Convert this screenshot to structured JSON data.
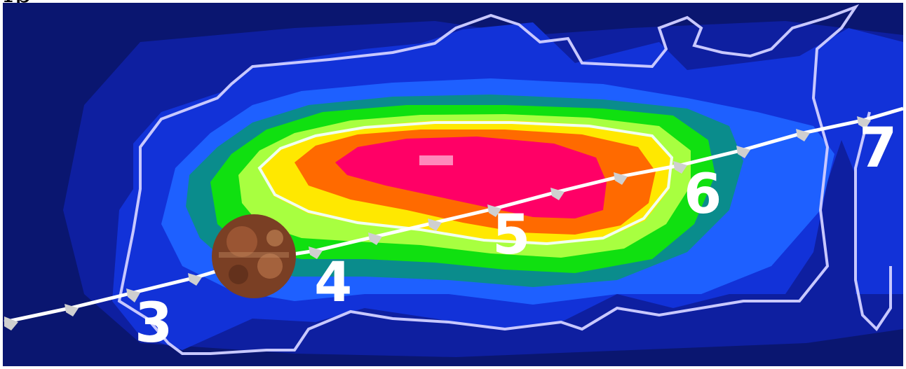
{
  "header": {
    "label": "Ip"
  },
  "map": {
    "colors": {
      "background": "#ffffff",
      "outer_blue": "#0a1a6e",
      "mid_blue": "#1030d8",
      "bright_blue": "#1e64ff",
      "teal": "#008a8a",
      "green": "#10e010",
      "light_green": "#a0ff40",
      "yellow": "#ffe800",
      "orange": "#ff6a00",
      "magenta": "#ff0066",
      "peak": "#ff88bb",
      "contour": "#c8c8ff",
      "track": "#ffffff"
    },
    "track_points": [
      {
        "label": "3"
      },
      {
        "label": "4"
      },
      {
        "label": "5"
      },
      {
        "label": "6"
      },
      {
        "label": "7"
      }
    ],
    "planet": {
      "name": "planet",
      "color": "#8b4a2a"
    }
  }
}
